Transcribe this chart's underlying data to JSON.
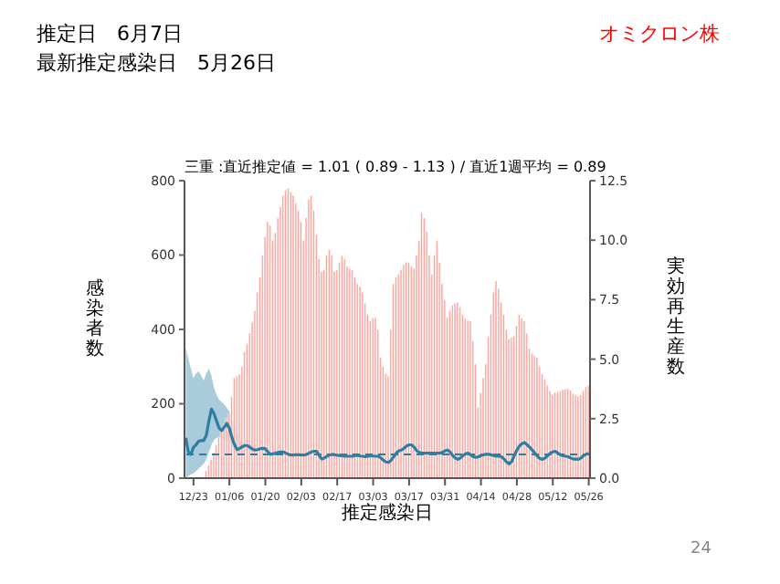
{
  "chart_data": {
    "type": "bar",
    "title": "三重 :直近推定値 = 1.01 ( 0.89 - 1.13 ) / 直近1週平均 = 0.89",
    "xlabel": "推定感染日",
    "ylabel": "感染者数",
    "y2label": "実効再生産数",
    "annotations": [
      "推定日　6月7日",
      "最新推定感染日　5月26日",
      "オミクロン株",
      "24"
    ],
    "categories": [
      null,
      null,
      null,
      "12/23",
      null,
      null,
      null,
      null,
      null,
      null,
      null,
      null,
      null,
      null,
      null,
      null,
      null,
      "01/06",
      null,
      null,
      null,
      null,
      null,
      null,
      null,
      null,
      null,
      null,
      null,
      null,
      null,
      "01/20",
      null,
      null,
      null,
      null,
      null,
      null,
      null,
      null,
      null,
      null,
      null,
      null,
      null,
      "02/03",
      null,
      null,
      null,
      null,
      null,
      null,
      null,
      null,
      null,
      null,
      null,
      null,
      null,
      "02/17",
      null,
      null,
      null,
      null,
      null,
      null,
      null,
      null,
      null,
      null,
      null,
      null,
      null,
      "03/03",
      null,
      null,
      null,
      null,
      null,
      null,
      null,
      null,
      null,
      null,
      null,
      null,
      null,
      "03/17",
      null,
      null,
      null,
      null,
      null,
      null,
      null,
      null,
      null,
      null,
      null,
      null,
      null,
      "03/31",
      null,
      null,
      null,
      null,
      null,
      null,
      null,
      null,
      null,
      null,
      null,
      null,
      null,
      "04/14",
      null,
      null,
      null,
      null,
      null,
      null,
      null,
      null,
      null,
      null,
      null,
      null,
      null,
      "04/28",
      null,
      null,
      null,
      null,
      null,
      null,
      null,
      null,
      null,
      null,
      null,
      null,
      null,
      "05/12",
      null,
      null,
      null,
      null,
      null,
      null,
      null,
      null,
      null,
      null,
      null,
      null,
      null,
      "05/26"
    ],
    "series": [
      {
        "color": "#f9a19a",
        "values": [
          null,
          null,
          null,
          null,
          null,
          null,
          null,
          null,
          20,
          35,
          50,
          70,
          90,
          110,
          130,
          145,
          160,
          172,
          220,
          270,
          275,
          280,
          300,
          340,
          360,
          390,
          420,
          450,
          500,
          540,
          600,
          650,
          690,
          680,
          640,
          660,
          700,
          730,
          760,
          775,
          780,
          770,
          760,
          740,
          720,
          690,
          640,
          700,
          750,
          760,
          720,
          655,
          590,
          556,
          560,
          600,
          614,
          600,
          556,
          560,
          580,
          598,
          590,
          570,
          564,
          560,
          540,
          523,
          515,
          500,
          470,
          440,
          423,
          430,
          432,
          400,
          324,
          300,
          282,
          274,
          400,
          523,
          540,
          548,
          560,
          575,
          581,
          580,
          570,
          564,
          600,
          639,
          714,
          700,
          664,
          600,
          548,
          600,
          639,
          580,
          523,
          480,
          432,
          450,
          465,
          470,
          473,
          460,
          440,
          430,
          425,
          423,
          370,
          307,
          191,
          230,
          270,
          307,
          380,
          440,
          500,
          531,
          510,
          473,
          440,
          400,
          374,
          378,
          382,
          410,
          440,
          430,
          423,
          390,
          349,
          335,
          330,
          324,
          300,
          280,
          266,
          250,
          235,
          224,
          230,
          232,
          235,
          238,
          240,
          241,
          236,
          228,
          224,
          220,
          224,
          235,
          245,
          249
        ]
      },
      {
        "type": "line",
        "axis": "y2",
        "color": "#2b7fa3",
        "values": [
          1.7,
          1.1,
          1.0,
          1.3,
          1.4,
          1.55,
          1.58,
          1.58,
          1.8,
          2.4,
          2.9,
          2.7,
          2.4,
          2.1,
          2.0,
          2.15,
          2.3,
          2.1,
          1.7,
          1.4,
          1.2,
          1.25,
          1.32,
          1.37,
          1.37,
          1.3,
          1.22,
          1.18,
          1.2,
          1.24,
          1.25,
          1.24,
          1.1,
          1.0,
          1.02,
          1.05,
          1.08,
          1.1,
          1.1,
          1.05,
          1.0,
          0.97,
          0.97,
          0.98,
          0.98,
          0.97,
          0.97,
          1.0,
          1.05,
          1.1,
          1.13,
          1.13,
          0.95,
          0.8,
          0.85,
          0.92,
          0.97,
          1.0,
          0.98,
          0.96,
          0.95,
          0.93,
          0.92,
          0.92,
          0.92,
          0.92,
          0.95,
          0.95,
          0.93,
          0.92,
          0.9,
          0.92,
          0.93,
          0.93,
          0.92,
          0.92,
          0.85,
          0.75,
          0.68,
          0.66,
          0.75,
          0.9,
          1.05,
          1.15,
          1.18,
          1.25,
          1.35,
          1.4,
          1.4,
          1.3,
          1.15,
          1.08,
          1.05,
          1.05,
          1.05,
          1.05,
          1.05,
          1.05,
          1.05,
          1.05,
          1.08,
          1.15,
          1.18,
          1.1,
          0.95,
          0.85,
          0.79,
          0.85,
          0.95,
          1.02,
          1.05,
          0.98,
          0.9,
          0.87,
          0.9,
          0.95,
          0.98,
          1.0,
          1.0,
          0.98,
          0.95,
          0.92,
          0.92,
          0.9,
          0.8,
          0.68,
          0.6,
          0.7,
          0.95,
          1.18,
          1.35,
          1.45,
          1.5,
          1.4,
          1.3,
          1.18,
          1.05,
          0.92,
          0.82,
          0.79,
          0.85,
          0.95,
          1.05,
          1.1,
          1.13,
          1.05,
          0.98,
          0.94,
          0.92,
          0.9,
          0.85,
          0.8,
          0.8,
          0.79,
          0.85,
          0.95,
          1.0,
          1.05
        ],
        "upper": [
          5.5,
          5.0,
          4.6,
          4.2,
          4.4,
          4.5,
          4.3,
          4.1,
          4.4,
          4.6,
          4.3,
          3.8,
          3.5,
          3.3,
          3.2,
          3.1,
          2.95,
          2.8,
          2.5,
          2.3,
          1.9,
          1.7,
          1.55,
          1.45,
          1.45,
          1.45,
          1.4,
          1.35,
          null,
          null,
          null,
          null,
          null,
          null,
          null,
          null,
          null,
          null,
          null,
          null,
          null,
          null,
          null,
          null,
          null,
          null,
          null,
          null,
          null,
          null,
          null,
          null,
          null,
          null,
          null,
          null,
          null,
          null,
          null,
          null,
          null,
          null,
          null,
          null,
          null,
          null,
          null,
          null,
          null,
          null,
          null,
          null,
          null,
          null,
          null,
          null,
          null,
          null,
          null,
          null,
          null,
          null,
          null,
          null,
          null,
          null,
          null,
          null,
          null,
          null,
          null,
          null,
          null,
          null,
          null,
          null,
          null,
          null,
          null,
          null,
          null,
          null,
          null,
          null,
          null,
          null,
          null,
          null,
          null,
          null,
          null,
          null,
          null,
          null,
          null,
          null,
          null,
          null,
          null,
          null,
          null,
          null,
          null,
          null,
          null,
          null,
          null,
          null,
          null,
          null,
          null,
          null,
          null,
          null,
          null,
          null,
          null,
          null,
          null,
          null,
          null,
          null,
          null,
          null,
          null,
          null,
          null,
          null,
          null,
          null,
          null,
          null,
          null,
          null,
          null,
          null,
          null,
          null
        ],
        "lower": [
          0.0,
          0.1,
          0.15,
          0.2,
          0.3,
          0.4,
          0.5,
          0.6,
          0.8,
          1.1,
          1.4,
          1.6,
          1.7,
          1.7,
          1.65,
          1.6,
          1.6,
          1.5,
          1.3,
          1.1,
          1.0,
          1.05,
          1.1,
          1.15,
          1.15,
          1.12,
          1.05,
          1.02,
          null,
          null,
          null,
          null,
          null,
          null,
          null,
          null,
          null,
          null,
          null,
          null,
          null,
          null,
          null,
          null,
          null,
          null,
          null,
          null,
          null,
          null,
          null,
          null,
          null,
          null,
          null,
          null,
          null,
          null,
          null,
          null,
          null,
          null,
          null,
          null,
          null,
          null,
          null,
          null,
          null,
          null,
          null,
          null,
          null,
          null,
          null,
          null,
          null,
          null,
          null,
          null,
          null,
          null,
          null,
          null,
          null,
          null,
          null,
          null,
          null,
          null,
          null,
          null,
          null,
          null,
          null,
          null,
          null,
          null,
          null,
          null,
          null,
          null,
          null,
          null,
          null,
          null,
          null,
          null,
          null,
          null,
          null,
          null,
          null,
          null,
          null,
          null,
          null,
          null,
          null,
          null,
          null,
          null,
          null,
          null,
          null,
          null,
          null,
          null,
          null,
          null,
          null,
          null,
          null,
          null,
          null,
          null,
          null,
          null,
          null,
          null,
          null,
          null,
          null,
          null,
          null,
          null,
          null,
          null,
          null,
          null,
          null,
          null,
          null,
          null,
          null,
          null,
          null,
          null
        ]
      }
    ],
    "ylim": [
      0,
      800
    ],
    "yticks": [
      0,
      200,
      400,
      600,
      800
    ],
    "y2lim": [
      0,
      12.5
    ],
    "y2ticks": [
      {
        "value": 0,
        "label": "0.0"
      },
      {
        "value": 2.5,
        "label": "2.5"
      },
      {
        "value": 5,
        "label": "5.0"
      },
      {
        "value": 7.5,
        "label": "7.5"
      },
      {
        "value": 10,
        "label": "10.0"
      },
      {
        "value": 12.5,
        "label": "12.5"
      }
    ],
    "ref_lines": [
      {
        "axis": "y2",
        "value": 1,
        "line_style": "dashed",
        "color": "#2b7fa3"
      }
    ],
    "grid": false,
    "legend": false
  }
}
